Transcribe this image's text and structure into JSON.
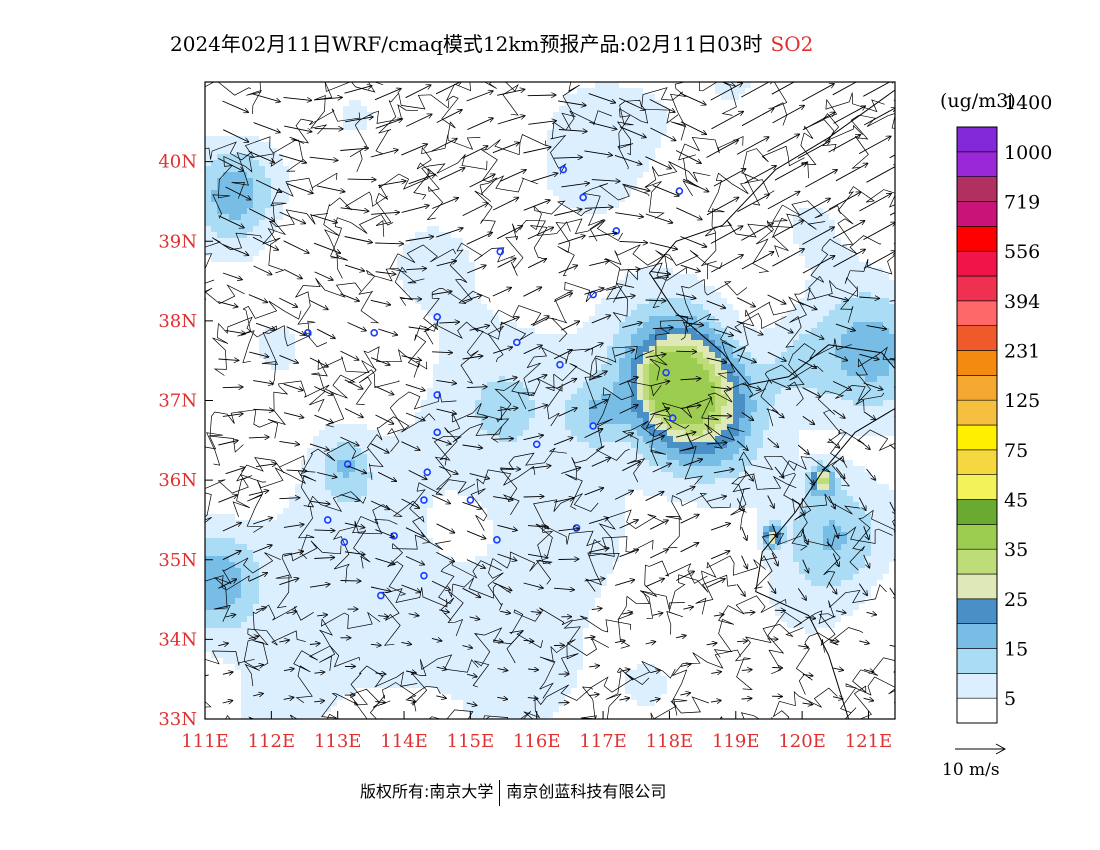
{
  "title": "2024年02月11日WRF/cmaq模式12km预报产品:02月11日03时",
  "species": "SO2",
  "unit": "(ug/m3)",
  "wind_reference": "10 m/s",
  "footer": {
    "copyright": "版权所有:南京大学",
    "company": "南京创蓝科技有限公司"
  },
  "axes": {
    "x_ticks": [
      "111E",
      "112E",
      "113E",
      "114E",
      "115E",
      "116E",
      "117E",
      "118E",
      "119E",
      "120E",
      "121E"
    ],
    "y_ticks": [
      "33N",
      "34N",
      "35N",
      "36N",
      "37N",
      "38N",
      "39N",
      "40N"
    ],
    "lon_range": [
      111,
      121.4
    ],
    "lat_range": [
      33,
      41
    ]
  },
  "colorbar": {
    "labels": [
      "5",
      "15",
      "25",
      "35",
      "45",
      "75",
      "125",
      "231",
      "394",
      "556",
      "719",
      "1000",
      "1400"
    ],
    "colors": [
      "#ffffff",
      "#dcefff",
      "#aadcf5",
      "#78bde6",
      "#4a90c6",
      "#dfe9b8",
      "#bedc78",
      "#9ccc50",
      "#6aaa30",
      "#f2f25a",
      "#f5d840",
      "#fff000",
      "#f5c040",
      "#f5a830",
      "#f58a10",
      "#f05a2a",
      "#ff6868",
      "#f03050",
      "#f01448",
      "#ff0000",
      "#c81478",
      "#b03060",
      "#9a28d8",
      "#8228d8"
    ]
  },
  "colors": {
    "accent": "#e03030",
    "text": "#000000"
  },
  "chart_data": {
    "type": "heatmap",
    "variable": "SO2",
    "xlim": [
      111,
      121.4
    ],
    "ylim": [
      33,
      41
    ],
    "hotspots": [
      {
        "lon": 118.1,
        "lat": 37.2,
        "sigma": 0.55,
        "peak": 34
      },
      {
        "lon": 118.0,
        "lat": 37.25,
        "sigma": 0.18,
        "peak": 30
      },
      {
        "lon": 118.7,
        "lat": 36.9,
        "sigma": 0.55,
        "peak": 14
      },
      {
        "lon": 121.0,
        "lat": 37.7,
        "sigma": 0.6,
        "peak": 13
      },
      {
        "lon": 120.5,
        "lat": 35.4,
        "sigma": 0.55,
        "peak": 14
      },
      {
        "lon": 120.3,
        "lat": 36.0,
        "sigma": 0.12,
        "peak": 26
      },
      {
        "lon": 119.55,
        "lat": 35.3,
        "sigma": 0.1,
        "peak": 24
      },
      {
        "lon": 111.5,
        "lat": 39.6,
        "sigma": 0.45,
        "peak": 14
      },
      {
        "lon": 111.2,
        "lat": 34.7,
        "sigma": 0.45,
        "peak": 13
      },
      {
        "lon": 116.9,
        "lat": 36.8,
        "sigma": 0.3,
        "peak": 10
      },
      {
        "lon": 115.8,
        "lat": 33.8,
        "sigma": 0.6,
        "peak": 9
      },
      {
        "lon": 113.1,
        "lat": 36.2,
        "sigma": 0.25,
        "peak": 9
      },
      {
        "lon": 119.9,
        "lat": 37.5,
        "sigma": 0.4,
        "peak": 8
      },
      {
        "lon": 117.2,
        "lat": 40.5,
        "sigma": 0.6,
        "peak": 6
      },
      {
        "lon": 115.6,
        "lat": 36.6,
        "sigma": 1.3,
        "peak": 6
      },
      {
        "lon": 113.0,
        "lat": 34.5,
        "sigma": 1.0,
        "peak": 6
      }
    ],
    "cities": [
      [
        116.4,
        39.9
      ],
      [
        116.7,
        39.55
      ],
      [
        117.2,
        39.13
      ],
      [
        118.15,
        39.63
      ],
      [
        115.45,
        38.87
      ],
      [
        116.85,
        38.33
      ],
      [
        114.5,
        38.05
      ],
      [
        115.7,
        37.73
      ],
      [
        116.35,
        37.45
      ],
      [
        114.5,
        37.07
      ],
      [
        116.85,
        36.68
      ],
      [
        118.05,
        36.78
      ],
      [
        114.5,
        36.6
      ],
      [
        114.35,
        36.1
      ],
      [
        114.3,
        35.75
      ],
      [
        115.0,
        35.75
      ],
      [
        116.0,
        36.45
      ],
      [
        116.6,
        35.4
      ],
      [
        115.4,
        35.25
      ],
      [
        113.85,
        35.3
      ],
      [
        113.1,
        35.22
      ],
      [
        112.85,
        35.5
      ],
      [
        113.15,
        36.2
      ],
      [
        112.55,
        37.85
      ],
      [
        113.55,
        37.85
      ],
      [
        114.3,
        34.8
      ],
      [
        113.65,
        34.55
      ],
      [
        117.95,
        37.35
      ]
    ]
  }
}
